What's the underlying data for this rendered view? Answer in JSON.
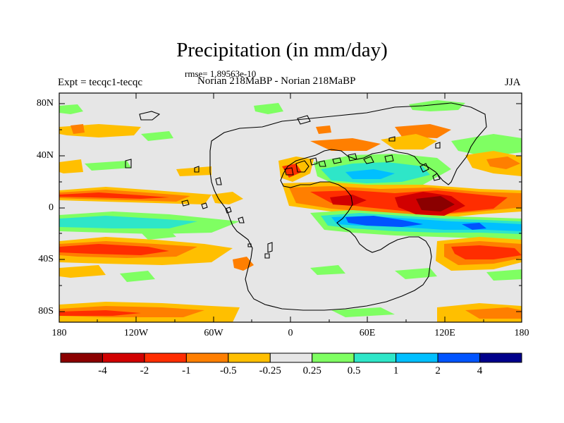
{
  "title": "Precipitation (in mm/day)",
  "rmse_label": "rmse= 1.89563e-10",
  "subtitle": "Norian 218MaBP - Norian 218MaBP",
  "left_label": "Expt = tecqc1-tecqc",
  "right_label": "JJA",
  "y_ticks": [
    "80N",
    "40N",
    "0",
    "40S",
    "80S"
  ],
  "x_ticks": [
    "180",
    "120W",
    "60W",
    "0",
    "60E",
    "120E",
    "180"
  ],
  "colorbar": {
    "colors": [
      "#8b0000",
      "#d10000",
      "#ff2d00",
      "#ff7f00",
      "#ffbf00",
      "#e6e6e6",
      "#7fff62",
      "#2ee6c8",
      "#00bfff",
      "#0054ff",
      "#00008b"
    ],
    "labels": [
      "-4",
      "-2",
      "-1",
      "-0.5",
      "-0.25",
      "0.25",
      "0.5",
      "1",
      "2",
      "4"
    ]
  },
  "map": {
    "background_color": "#e6e6e6",
    "coastline_color": "#000000"
  }
}
